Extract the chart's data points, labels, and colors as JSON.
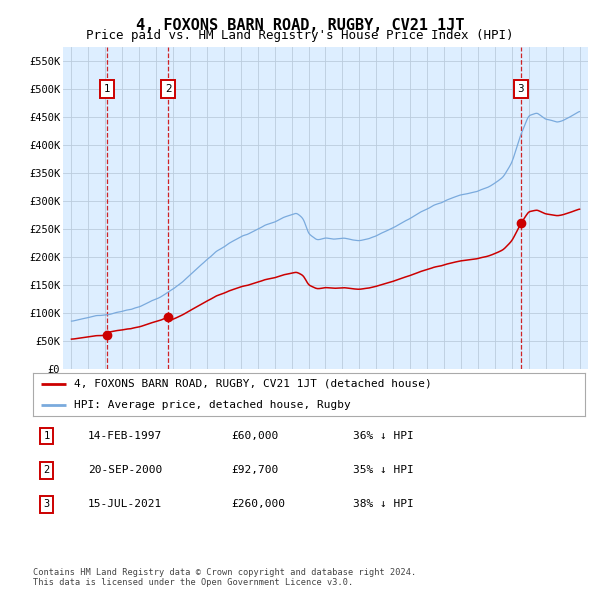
{
  "title": "4, FOXONS BARN ROAD, RUGBY, CV21 1JT",
  "subtitle": "Price paid vs. HM Land Registry's House Price Index (HPI)",
  "xlim": [
    1994.5,
    2025.5
  ],
  "ylim": [
    0,
    575000
  ],
  "yticks": [
    0,
    50000,
    100000,
    150000,
    200000,
    250000,
    300000,
    350000,
    400000,
    450000,
    500000,
    550000
  ],
  "ytick_labels": [
    "£0",
    "£50K",
    "£100K",
    "£150K",
    "£200K",
    "£250K",
    "£300K",
    "£350K",
    "£400K",
    "£450K",
    "£500K",
    "£550K"
  ],
  "xticks": [
    1995,
    1996,
    1997,
    1998,
    1999,
    2000,
    2001,
    2002,
    2003,
    2004,
    2005,
    2006,
    2007,
    2008,
    2009,
    2010,
    2011,
    2012,
    2013,
    2014,
    2015,
    2016,
    2017,
    2018,
    2019,
    2020,
    2021,
    2022,
    2023,
    2024,
    2025
  ],
  "sales": [
    {
      "date_year": 1997.12,
      "price": 60000,
      "label": "1"
    },
    {
      "date_year": 2000.72,
      "price": 92700,
      "label": "2"
    },
    {
      "date_year": 2021.54,
      "price": 260000,
      "label": "3"
    }
  ],
  "sale_color": "#cc0000",
  "hpi_color": "#7aaadd",
  "background_color": "#ddeeff",
  "grid_color": "#bbccdd",
  "legend_entries": [
    "4, FOXONS BARN ROAD, RUGBY, CV21 1JT (detached house)",
    "HPI: Average price, detached house, Rugby"
  ],
  "table_rows": [
    {
      "label": "1",
      "date": "14-FEB-1997",
      "price": "£60,000",
      "hpi": "36% ↓ HPI"
    },
    {
      "label": "2",
      "date": "20-SEP-2000",
      "price": "£92,700",
      "hpi": "35% ↓ HPI"
    },
    {
      "label": "3",
      "date": "15-JUL-2021",
      "price": "£260,000",
      "hpi": "38% ↓ HPI"
    }
  ],
  "footnote": "Contains HM Land Registry data © Crown copyright and database right 2024.\nThis data is licensed under the Open Government Licence v3.0.",
  "title_fontsize": 11,
  "subtitle_fontsize": 9,
  "tick_fontsize": 7.5,
  "legend_fontsize": 8
}
